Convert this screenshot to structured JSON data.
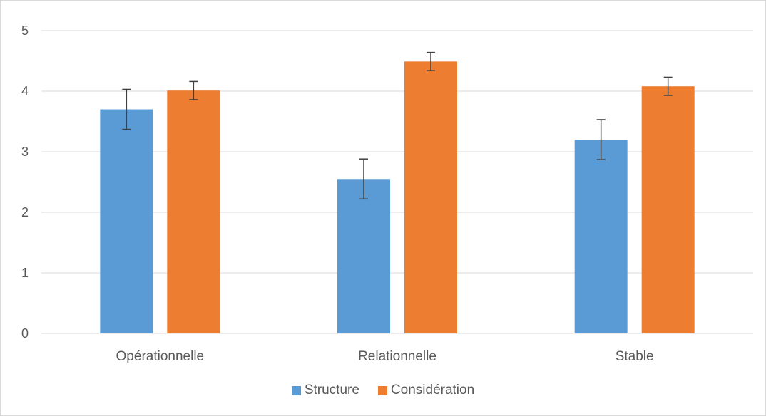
{
  "chart_data": {
    "type": "bar",
    "title": "",
    "xlabel": "",
    "ylabel": "",
    "ylim": [
      0,
      5
    ],
    "yticks": [
      0,
      1,
      2,
      3,
      4,
      5
    ],
    "grid": true,
    "legend_position": "bottom",
    "categories": [
      "Opérationnelle",
      "Relationnelle",
      "Stable"
    ],
    "series": [
      {
        "name": "Structure",
        "color": "#5B9BD5",
        "values": [
          3.7,
          2.55,
          3.2
        ],
        "error": [
          0.33,
          0.33,
          0.33
        ]
      },
      {
        "name": "Considération",
        "color": "#ED7D31",
        "values": [
          4.01,
          4.49,
          4.08
        ],
        "error": [
          0.15,
          0.15,
          0.15
        ]
      }
    ]
  }
}
